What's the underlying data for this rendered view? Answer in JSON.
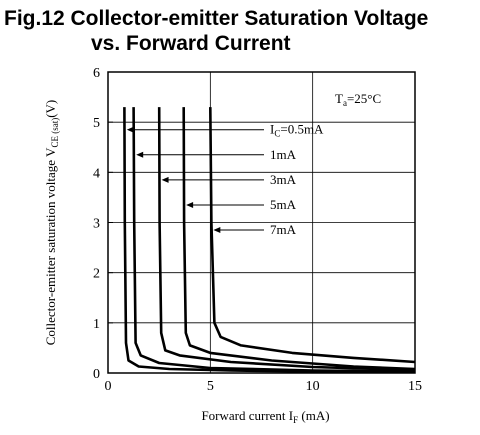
{
  "title_line1": "Fig.12 Collector-emitter Saturation Voltage",
  "title_line2": "vs. Forward Current",
  "chart_data": {
    "type": "line",
    "title": "Fig.12 Collector-emitter Saturation Voltage vs. Forward Current",
    "xlabel": "Forward current I_F (mA)",
    "xlabel_main": "Forward current I",
    "xlabel_sub": "F",
    "xlabel_unit": " (mA)",
    "ylabel": "Collector-emitter saturation voltage V_CE(sat) (V)",
    "ylabel_main": "Collector-emitter saturation voltage V",
    "ylabel_sub": "CE (sat)",
    "ylabel_unit": "(V)",
    "xlim": [
      0,
      15
    ],
    "ylim": [
      0,
      6
    ],
    "xticks": [
      "0",
      "5",
      "10",
      "15"
    ],
    "yticks": [
      "0",
      "1",
      "2",
      "3",
      "4",
      "5",
      "6"
    ],
    "grid": true,
    "annotation": {
      "main": "T",
      "sub": "a",
      "rest": "=25°C"
    },
    "series": [
      {
        "name": "IC=0.5mA",
        "label_main": "I",
        "label_sub": "C",
        "label_rest": "=0.5mA",
        "x": [
          0.8,
          0.82,
          0.88,
          1.0,
          1.5,
          3,
          6,
          10,
          15
        ],
        "y": [
          5.3,
          3.0,
          0.6,
          0.25,
          0.13,
          0.08,
          0.05,
          0.03,
          0.02
        ]
      },
      {
        "name": "1mA",
        "label_main": "1mA",
        "x": [
          1.25,
          1.28,
          1.35,
          1.6,
          2.5,
          5,
          10,
          15
        ],
        "y": [
          5.3,
          3.0,
          0.6,
          0.35,
          0.2,
          0.1,
          0.05,
          0.03
        ]
      },
      {
        "name": "3mA",
        "label_main": "3mA",
        "x": [
          2.5,
          2.52,
          2.6,
          2.8,
          3.5,
          6,
          10,
          15
        ],
        "y": [
          5.3,
          3.0,
          0.8,
          0.45,
          0.35,
          0.22,
          0.12,
          0.06
        ]
      },
      {
        "name": "5mA",
        "label_main": "5mA",
        "x": [
          3.7,
          3.72,
          3.8,
          4.0,
          5,
          8,
          12,
          15
        ],
        "y": [
          5.3,
          3.0,
          0.8,
          0.55,
          0.4,
          0.25,
          0.13,
          0.08
        ]
      },
      {
        "name": "7mA",
        "label_main": "7mA",
        "x": [
          5.0,
          5.05,
          5.2,
          5.5,
          6.5,
          9,
          12,
          15
        ],
        "y": [
          5.3,
          3.0,
          1.0,
          0.72,
          0.55,
          0.4,
          0.3,
          0.22
        ]
      }
    ]
  }
}
